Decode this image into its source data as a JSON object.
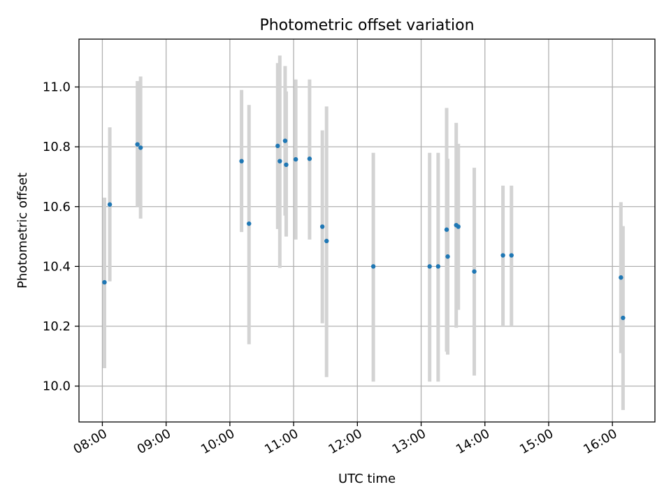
{
  "chart_data": {
    "type": "scatter",
    "title": "Photometric offset variation",
    "xlabel": "UTC time",
    "ylabel": "Photometric offset",
    "xlim": [
      "07:38",
      "16:40"
    ],
    "ylim": [
      9.88,
      11.16
    ],
    "x_ticks": [
      "08:00",
      "09:00",
      "10:00",
      "11:00",
      "12:00",
      "13:00",
      "14:00",
      "15:00",
      "16:00"
    ],
    "y_ticks": [
      "10.0",
      "10.2",
      "10.4",
      "10.6",
      "10.8",
      "11.0"
    ],
    "grid": true,
    "legend": false,
    "colors": {
      "point": "#1f77b4",
      "errorbar": "#d3d3d3",
      "grid": "#b0b0b0"
    },
    "series": [
      {
        "points": [
          {
            "x": "08:02",
            "y": 10.347,
            "ylo": 10.06,
            "yhi": 10.63
          },
          {
            "x": "08:07",
            "y": 10.607,
            "ylo": 10.35,
            "yhi": 10.865
          },
          {
            "x": "08:33",
            "y": 10.808,
            "ylo": 10.6,
            "yhi": 11.02
          },
          {
            "x": "08:36",
            "y": 10.797,
            "ylo": 10.56,
            "yhi": 11.035
          },
          {
            "x": "10:11",
            "y": 10.752,
            "ylo": 10.515,
            "yhi": 10.99
          },
          {
            "x": "10:18",
            "y": 10.543,
            "ylo": 10.14,
            "yhi": 10.94
          },
          {
            "x": "10:45",
            "y": 10.803,
            "ylo": 10.525,
            "yhi": 11.08
          },
          {
            "x": "10:47",
            "y": 10.752,
            "ylo": 10.395,
            "yhi": 11.105
          },
          {
            "x": "10:52",
            "y": 10.82,
            "ylo": 10.57,
            "yhi": 11.07
          },
          {
            "x": "10:53",
            "y": 10.74,
            "ylo": 10.5,
            "yhi": 10.985
          },
          {
            "x": "11:02",
            "y": 10.758,
            "ylo": 10.49,
            "yhi": 11.025
          },
          {
            "x": "11:15",
            "y": 10.76,
            "ylo": 10.49,
            "yhi": 11.025
          },
          {
            "x": "11:27",
            "y": 10.533,
            "ylo": 10.21,
            "yhi": 10.855
          },
          {
            "x": "11:31",
            "y": 10.485,
            "ylo": 10.03,
            "yhi": 10.935
          },
          {
            "x": "12:15",
            "y": 10.4,
            "ylo": 10.015,
            "yhi": 10.78
          },
          {
            "x": "13:08",
            "y": 10.4,
            "ylo": 10.015,
            "yhi": 10.78
          },
          {
            "x": "13:16",
            "y": 10.4,
            "ylo": 10.015,
            "yhi": 10.78
          },
          {
            "x": "13:24",
            "y": 10.523,
            "ylo": 10.115,
            "yhi": 10.93
          },
          {
            "x": "13:25",
            "y": 10.433,
            "ylo": 10.105,
            "yhi": 10.76
          },
          {
            "x": "13:33",
            "y": 10.538,
            "ylo": 10.195,
            "yhi": 10.88
          },
          {
            "x": "13:35",
            "y": 10.533,
            "ylo": 10.255,
            "yhi": 10.81
          },
          {
            "x": "13:50",
            "y": 10.383,
            "ylo": 10.035,
            "yhi": 10.73
          },
          {
            "x": "14:17",
            "y": 10.437,
            "ylo": 10.2,
            "yhi": 10.67
          },
          {
            "x": "14:25",
            "y": 10.437,
            "ylo": 10.2,
            "yhi": 10.67
          },
          {
            "x": "16:08",
            "y": 10.363,
            "ylo": 10.11,
            "yhi": 10.615
          },
          {
            "x": "16:10",
            "y": 10.228,
            "ylo": 9.92,
            "yhi": 10.535
          }
        ]
      }
    ]
  }
}
